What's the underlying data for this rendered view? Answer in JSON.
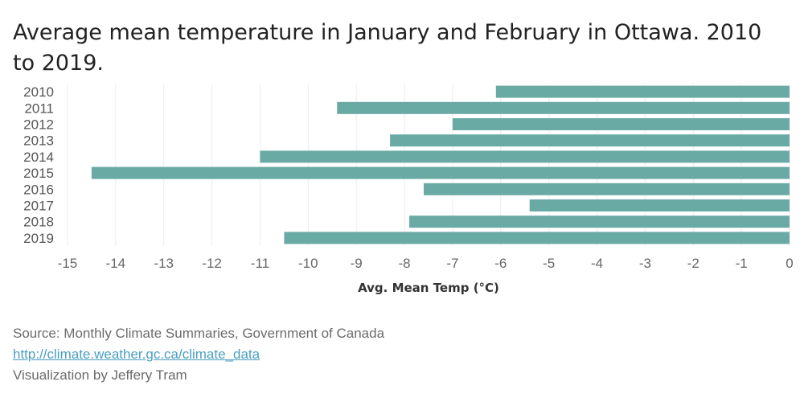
{
  "chart_data": {
    "type": "bar",
    "orientation": "horizontal",
    "title": "Average mean temperature in January and February in Ottawa. 2010 to 2019.",
    "xlabel": "Avg. Mean Temp (°C)",
    "ylabel": "",
    "categories": [
      "2010",
      "2011",
      "2012",
      "2013",
      "2014",
      "2015",
      "2016",
      "2017",
      "2018",
      "2019"
    ],
    "values": [
      -6.1,
      -9.4,
      -7.0,
      -8.3,
      -11.0,
      -14.5,
      -7.6,
      -5.4,
      -7.9,
      -10.5
    ],
    "xlim": [
      -15.2,
      0.1
    ],
    "xticks": [
      -15,
      -14,
      -13,
      -12,
      -11,
      -10,
      -9,
      -8,
      -7,
      -6,
      -5,
      -4,
      -3,
      -2,
      -1,
      0
    ],
    "grid": true,
    "bar_color": "#6aaaa4"
  },
  "footer": {
    "source": "Source: Monthly Climate Summaries, Government of Canada",
    "link": "http://climate.weather.gc.ca/climate_data",
    "credit": "Visualization by Jeffery Tram"
  }
}
